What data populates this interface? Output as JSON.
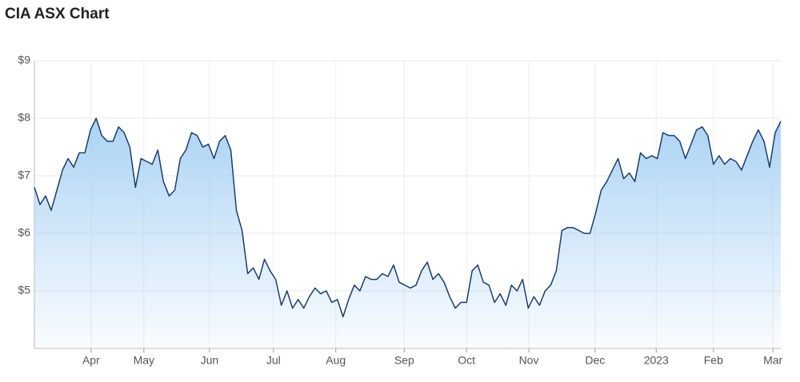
{
  "chart_data": {
    "type": "area",
    "title": "CIA ASX Chart",
    "line_color": "#1b3d6e",
    "fill_color": "#9ccbf2",
    "grid": true,
    "xlim": [
      0,
      133
    ],
    "xticks": [
      {
        "value": 10.1,
        "label": "Apr"
      },
      {
        "value": 19.5,
        "label": "May"
      },
      {
        "value": 31.2,
        "label": "Jun"
      },
      {
        "value": 42.6,
        "label": "Jul"
      },
      {
        "value": 53.7,
        "label": "Aug"
      },
      {
        "value": 65.9,
        "label": "Sep"
      },
      {
        "value": 77.0,
        "label": "Oct"
      },
      {
        "value": 88.1,
        "label": "Nov"
      },
      {
        "value": 99.9,
        "label": "Dec"
      },
      {
        "value": 110.8,
        "label": "2023"
      },
      {
        "value": 121.0,
        "label": "Feb"
      },
      {
        "value": 131.6,
        "label": "Mar"
      }
    ],
    "ylim": [
      4,
      9
    ],
    "yticks": [
      {
        "value": 5,
        "label": "$5"
      },
      {
        "value": 6,
        "label": "$6"
      },
      {
        "value": 7,
        "label": "$7"
      },
      {
        "value": 8,
        "label": "$8"
      },
      {
        "value": 9,
        "label": "$9"
      }
    ],
    "values": [
      6.8,
      6.5,
      6.65,
      6.4,
      6.75,
      7.1,
      7.3,
      7.15,
      7.4,
      7.4,
      7.8,
      8.0,
      7.7,
      7.6,
      7.6,
      7.85,
      7.75,
      7.5,
      6.8,
      7.3,
      7.25,
      7.2,
      7.45,
      6.9,
      6.65,
      6.75,
      7.3,
      7.45,
      7.75,
      7.7,
      7.5,
      7.55,
      7.3,
      7.6,
      7.7,
      7.45,
      6.4,
      6.05,
      5.3,
      5.4,
      5.2,
      5.55,
      5.35,
      5.2,
      4.75,
      5.0,
      4.7,
      4.85,
      4.7,
      4.9,
      5.05,
      4.95,
      5.0,
      4.8,
      4.85,
      4.55,
      4.85,
      5.1,
      5.0,
      5.25,
      5.2,
      5.2,
      5.3,
      5.25,
      5.45,
      5.15,
      5.1,
      5.05,
      5.1,
      5.35,
      5.5,
      5.2,
      5.3,
      5.15,
      4.9,
      4.7,
      4.8,
      4.8,
      5.35,
      5.45,
      5.15,
      5.1,
      4.8,
      4.95,
      4.75,
      5.1,
      5.0,
      5.2,
      4.7,
      4.9,
      4.75,
      5.0,
      5.1,
      5.35,
      6.05,
      6.1,
      6.1,
      6.05,
      6.0,
      6.0,
      6.35,
      6.75,
      6.9,
      7.1,
      7.3,
      6.95,
      7.05,
      6.9,
      7.4,
      7.3,
      7.35,
      7.3,
      7.75,
      7.7,
      7.7,
      7.6,
      7.3,
      7.55,
      7.8,
      7.85,
      7.7,
      7.2,
      7.35,
      7.2,
      7.3,
      7.25,
      7.1,
      7.35,
      7.6,
      7.8,
      7.6,
      7.15,
      7.75,
      7.95
    ]
  }
}
